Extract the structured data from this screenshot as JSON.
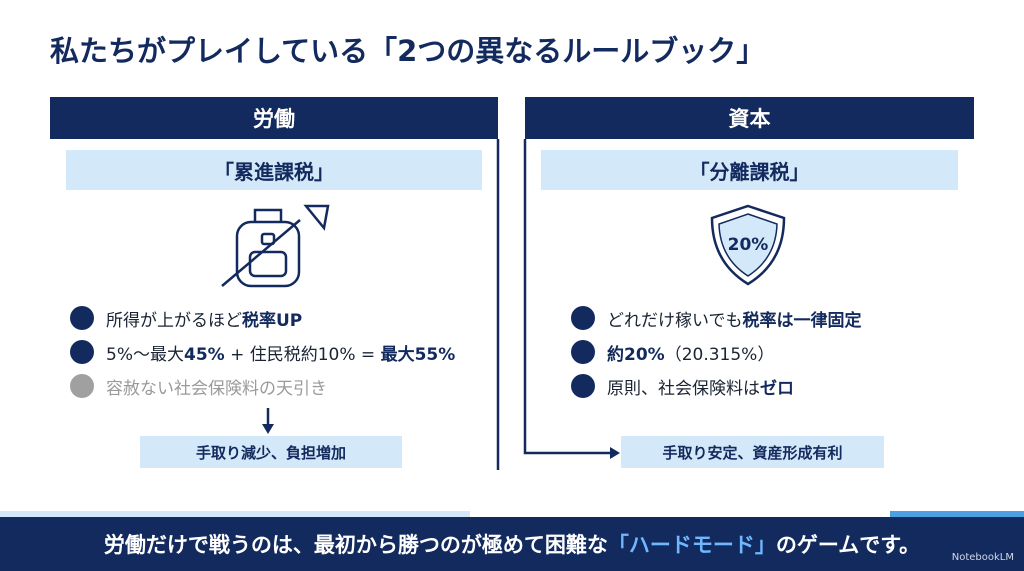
{
  "title": "私たちがプレイしている「2つの異なるルールブック」",
  "left": {
    "header": "労働",
    "subtitle": "「累進課税」",
    "bullets": [
      [
        {
          "text": "所得が上がるほど",
          "bold": false
        },
        {
          "text": "税率UP",
          "bold": true
        }
      ],
      [
        {
          "text": "5%〜最大",
          "bold": false
        },
        {
          "text": "45%",
          "bold": true
        },
        {
          "text": " + 住民税約10% = ",
          "bold": false
        },
        {
          "text": "最大55%",
          "bold": true
        }
      ],
      [
        {
          "text": "容赦ない社会保険料の天引き",
          "bold": false
        }
      ]
    ],
    "result": "手取り減少、負担増加"
  },
  "right": {
    "header": "資本",
    "subtitle": "「分離課税」",
    "icon_text": "20%",
    "bullets": [
      [
        {
          "text": "どれだけ稼いでも",
          "bold": false
        },
        {
          "text": "税率は一律固定",
          "bold": true
        }
      ],
      [
        {
          "text": "約20%",
          "bold": true
        },
        {
          "text": "（20.315%）",
          "bold": false
        }
      ],
      [
        {
          "text": "原則、社会保険料は",
          "bold": false
        },
        {
          "text": "ゼロ",
          "bold": true
        }
      ]
    ],
    "result": "手取り安定、資産形成有利"
  },
  "footer": {
    "segments": [
      {
        "text": "労働だけで戦うのは、最初から勝つのが極めて困難な",
        "highlight": false
      },
      {
        "text": "「ハードモード」",
        "highlight": true
      },
      {
        "text": "のゲームです。",
        "highlight": false
      }
    ],
    "brand": "NotebookLM"
  }
}
